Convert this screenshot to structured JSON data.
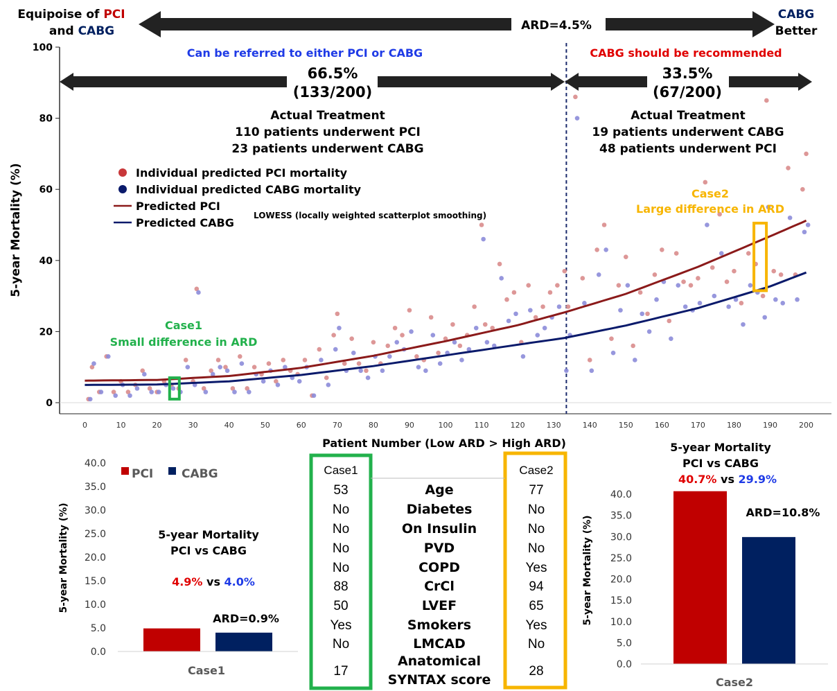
{
  "header": {
    "left_line1_prefix": "Equipoise of ",
    "left_line1_pci": "PCI",
    "left_line2_and": "and ",
    "left_line2_cabg": "CABG",
    "center": "ARD=4.5%",
    "right_line1": "CABG",
    "right_line2": "Better"
  },
  "main_chart": {
    "ylabel": "5-year Mortality (%)",
    "xlabel": "Patient Number (Low ARD > High ARD)",
    "left_region_title": "Can be referred to either PCI or CABG",
    "right_region_title": "CABG should be recommended",
    "left_pct": "66.5%",
    "left_count": "(133/200)",
    "right_pct": "33.5%",
    "right_count": "(67/200)",
    "left_actual": [
      "Actual Treatment",
      "110 patients underwent PCI",
      "23 patients underwent CABG"
    ],
    "right_actual": [
      "Actual Treatment",
      "19 patients underwent CABG",
      "48 patients underwent PCI"
    ],
    "legend": [
      "Individual predicted PCI mortality",
      "Individual predicted CABG mortality",
      "Predicted PCI",
      "Predicted CABG"
    ],
    "lowess_note": "LOWESS (locally weighted scatterplot smoothing)",
    "case1_label": [
      "Case1",
      "Small difference in ARD"
    ],
    "case2_label": [
      "Case2",
      "Large difference in ARD"
    ]
  },
  "chart_data": [
    {
      "type": "scatter",
      "ylabel": "5-year Mortality (%)",
      "xlabel": "Patient Number (Low ARD > High ARD)",
      "xlim": [
        -7,
        207
      ],
      "ylim": [
        -3,
        100
      ],
      "xticks": [
        0,
        10,
        20,
        30,
        40,
        50,
        60,
        70,
        80,
        90,
        100,
        110,
        120,
        130,
        140,
        150,
        160,
        170,
        180,
        190,
        200
      ],
      "yticks": [
        0,
        20,
        40,
        60,
        80,
        100
      ],
      "threshold_x": 133.5,
      "series": [
        {
          "name": "Predicted PCI",
          "kind": "line",
          "x": [
            0,
            20,
            40,
            60,
            80,
            100,
            120,
            133,
            150,
            170,
            190,
            200
          ],
          "y": [
            6.2,
            6.4,
            7.5,
            9.8,
            13.2,
            17.3,
            21.8,
            25.4,
            30.6,
            38.2,
            46.8,
            51.2
          ]
        },
        {
          "name": "Predicted CABG",
          "kind": "line",
          "x": [
            0,
            20,
            40,
            60,
            80,
            100,
            120,
            133,
            150,
            170,
            190,
            200
          ],
          "y": [
            5.0,
            5.1,
            6.0,
            7.8,
            10.3,
            13.3,
            16.3,
            18.2,
            21.7,
            26.6,
            32.7,
            36.6
          ]
        },
        {
          "name": "Individual predicted PCI mortality",
          "kind": "scatter",
          "x": [
            1,
            2,
            4,
            6,
            8,
            10,
            12,
            14,
            16,
            18,
            20,
            22,
            24,
            26,
            28,
            30,
            31,
            33,
            35,
            37,
            39,
            41,
            43,
            45,
            47,
            49,
            51,
            53,
            55,
            57,
            59,
            61,
            63,
            65,
            67,
            69,
            70,
            72,
            74,
            76,
            78,
            80,
            82,
            84,
            86,
            88,
            90,
            92,
            94,
            96,
            98,
            100,
            102,
            104,
            106,
            108,
            110,
            111,
            113,
            115,
            117,
            119,
            121,
            123,
            125,
            127,
            129,
            131,
            133,
            134,
            136,
            138,
            140,
            142,
            144,
            146,
            148,
            150,
            152,
            154,
            156,
            158,
            160,
            162,
            164,
            166,
            168,
            170,
            172,
            174,
            176,
            178,
            180,
            182,
            184,
            186,
            188,
            189,
            191,
            193,
            195,
            197,
            199,
            200
          ],
          "y": [
            1,
            10,
            3,
            13,
            3,
            6,
            3,
            5,
            9,
            4,
            3,
            6,
            5,
            4,
            12,
            6,
            32,
            4,
            9,
            12,
            10,
            4,
            13,
            4,
            10,
            8,
            11,
            6,
            12,
            9,
            8,
            12,
            2,
            15,
            7,
            19,
            25,
            11,
            18,
            11,
            9,
            17,
            11,
            16,
            21,
            19,
            26,
            13,
            12,
            24,
            14,
            18,
            22,
            16,
            19,
            27,
            50,
            22,
            21,
            39,
            29,
            31,
            17,
            33,
            24,
            27,
            31,
            33,
            37,
            27,
            86,
            35,
            12,
            43,
            50,
            18,
            33,
            41,
            16,
            31,
            25,
            36,
            43,
            23,
            42,
            34,
            33,
            35,
            62,
            38,
            53,
            34,
            37,
            28,
            42,
            39,
            30,
            85,
            37,
            36,
            66,
            36,
            60,
            70
          ]
        },
        {
          "name": "Individual predicted CABG mortality",
          "kind": "scatter",
          "x": [
            1,
            2,
            4,
            6,
            8,
            10,
            12,
            14,
            16,
            18,
            20,
            22,
            24,
            26,
            28,
            30,
            31,
            33,
            35,
            37,
            39,
            41,
            43,
            45,
            47,
            49,
            51,
            53,
            55,
            57,
            59,
            61,
            63,
            65,
            67,
            69,
            70,
            72,
            74,
            76,
            78,
            80,
            82,
            84,
            86,
            88,
            90,
            92,
            94,
            96,
            98,
            100,
            102,
            104,
            106,
            108,
            110,
            111,
            113,
            115,
            117,
            119,
            121,
            123,
            125,
            127,
            129,
            131,
            133,
            134,
            136,
            138,
            140,
            142,
            144,
            146,
            148,
            150,
            152,
            154,
            156,
            158,
            160,
            162,
            164,
            166,
            168,
            170,
            172,
            174,
            176,
            178,
            180,
            182,
            184,
            186,
            188,
            189,
            191,
            193,
            195,
            197,
            199,
            200
          ],
          "y": [
            1,
            11,
            3,
            13,
            2,
            5,
            2,
            4,
            8,
            3,
            3,
            5,
            4,
            3,
            10,
            5,
            31,
            3,
            8,
            10,
            9,
            3,
            11,
            3,
            8,
            6,
            9,
            5,
            10,
            7,
            6,
            10,
            2,
            12,
            5,
            15,
            21,
            9,
            14,
            9,
            7,
            13,
            9,
            13,
            17,
            15,
            20,
            10,
            9,
            19,
            11,
            14,
            17,
            12,
            15,
            21,
            46,
            17,
            16,
            35,
            23,
            25,
            13,
            26,
            19,
            21,
            24,
            27,
            9,
            19,
            80,
            28,
            9,
            36,
            43,
            14,
            26,
            33,
            12,
            25,
            20,
            29,
            34,
            18,
            33,
            27,
            26,
            28,
            50,
            30,
            42,
            27,
            29,
            22,
            33,
            31,
            24,
            55,
            29,
            28,
            52,
            29,
            48,
            50
          ]
        }
      ]
    },
    {
      "type": "bar",
      "title": "5-year Mortality PCI vs CABG",
      "categories": [
        "Case1"
      ],
      "series": [
        {
          "name": "PCI",
          "values": [
            4.9
          ]
        },
        {
          "name": "CABG",
          "values": [
            4.0
          ]
        }
      ],
      "ylabel": "5-year Mortality (%)",
      "ylim": [
        0,
        40
      ],
      "yticks": [
        "0.0",
        "5.0",
        "10.0",
        "15.0",
        "20.0",
        "25.0",
        "30.0",
        "35.0",
        "40.0"
      ],
      "annotation": "ARD=0.9%",
      "compare_pci": "4.9%",
      "compare_vs": " vs ",
      "compare_cabg": "4.0%",
      "title_lines": [
        "5-year Mortality",
        "PCI vs CABG"
      ],
      "legend": [
        "PCI",
        "CABG"
      ]
    },
    {
      "type": "table",
      "headers": [
        "Case1",
        "",
        "Case2"
      ],
      "rows": [
        [
          "53",
          "Age",
          "77"
        ],
        [
          "No",
          "Diabetes",
          "No"
        ],
        [
          "No",
          "On Insulin",
          "No"
        ],
        [
          "No",
          "PVD",
          "No"
        ],
        [
          "No",
          "COPD",
          "Yes"
        ],
        [
          "88",
          "CrCl",
          "94"
        ],
        [
          "50",
          "LVEF",
          "65"
        ],
        [
          "Yes",
          "Smokers",
          "Yes"
        ],
        [
          "No",
          "LMCAD",
          "No"
        ],
        [
          "17",
          "Anatomical SYNTAX score",
          "28"
        ]
      ]
    },
    {
      "type": "bar",
      "title": "5-year Mortality PCI vs CABG",
      "categories": [
        "Case2"
      ],
      "series": [
        {
          "name": "PCI",
          "values": [
            40.7
          ]
        },
        {
          "name": "CABG",
          "values": [
            29.9
          ]
        }
      ],
      "ylabel": "5-year Mortality (%)",
      "ylim": [
        0,
        40
      ],
      "yticks": [
        "0.0",
        "5.0",
        "10.0",
        "15.0",
        "20.0",
        "25.0",
        "30.0",
        "35.0",
        "40.0"
      ],
      "annotation": "ARD=10.8%",
      "compare_pci": "40.7%",
      "compare_vs": " vs ",
      "compare_cabg": "29.9%",
      "title_lines": [
        "5-year Mortality",
        "PCI vs CABG"
      ]
    }
  ],
  "colors": {
    "pci_dot": "#d98c8c",
    "cabg_dot": "#8c8cd9",
    "pci_line": "#8b1a1a",
    "cabg_line": "#0a1a6b",
    "pci_bar": "#c00000",
    "cabg_bar": "#002060",
    "green": "#22b14c",
    "gold": "#f7b500",
    "blue_text": "#1f3be6",
    "red_text": "#e00000",
    "navy_text": "#002060"
  }
}
